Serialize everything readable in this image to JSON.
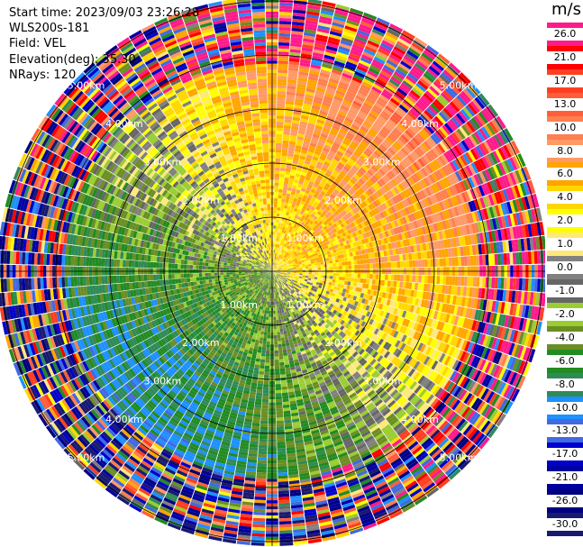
{
  "info": {
    "start_time": "Start time: 2023/09/03 23:26:28",
    "instrument": "WLS200s-181",
    "field": "Field: VEL",
    "elevation": "Elevation(deg): 35.30",
    "nrays": "NRays: 120"
  },
  "range_ring_labels": [
    "1.00km",
    "2.00km",
    "3.00km",
    "4.00km",
    "5.00km"
  ],
  "colorbar": {
    "unit": "m/s",
    "ticks": [
      "26.0",
      "21.0",
      "17.0",
      "13.0",
      "10.0",
      "8.0",
      "6.0",
      "4.0",
      "2.0",
      "1.0",
      "0.0",
      "-1.0",
      "-2.0",
      "-4.0",
      "-6.0",
      "-8.0",
      "-10.0",
      "-13.0",
      "-17.0",
      "-21.0",
      "-26.0",
      "-30.0"
    ],
    "colors": [
      "#ff1a8c",
      "#ff0000",
      "#ff3f1f",
      "#ff5e3a",
      "#ff7f50",
      "#ff9966",
      "#ffa500",
      "#ffd700",
      "#ffff00",
      "#ffe87a",
      "#808080",
      "#666666",
      "#9acd32",
      "#6b8e23",
      "#228b22",
      "#2e8b57",
      "#1e90ff",
      "#4169e1",
      "#0000cd",
      "#0000a0",
      "#000080",
      "#191970"
    ]
  }
}
